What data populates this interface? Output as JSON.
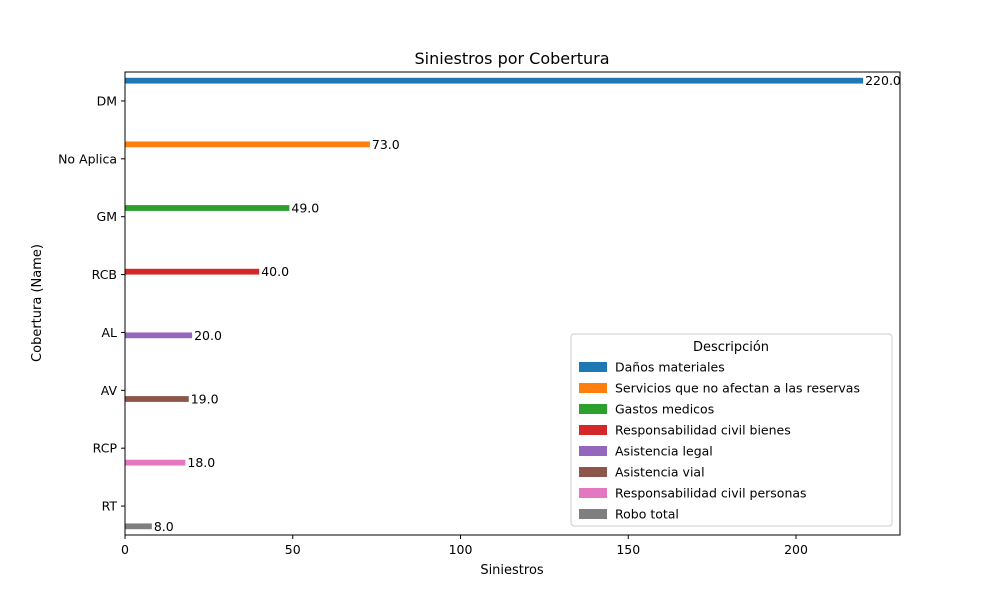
{
  "chart_data": {
    "type": "bar",
    "orientation": "horizontal",
    "title": "Siniestros por Cobertura",
    "xlabel": "Siniestros",
    "ylabel": "Cobertura (Name)",
    "xlim": [
      0,
      231
    ],
    "xticks": [
      0,
      50,
      100,
      150,
      200
    ],
    "grid": false,
    "categories": [
      "DM",
      "No Aplica",
      "GM",
      "RCB",
      "AL",
      "AV",
      "RCP",
      "RT"
    ],
    "legend": {
      "title": "Descripción",
      "placement": "lower-right"
    },
    "series": [
      {
        "name": "Daños materiales",
        "color": "#1f77b4",
        "category": "DM",
        "value": 220,
        "label": "220.0"
      },
      {
        "name": "Servicios que no afectan a las reservas",
        "color": "#ff7f0e",
        "category": "No Aplica",
        "value": 73,
        "label": "73.0"
      },
      {
        "name": "Gastos medicos",
        "color": "#2ca02c",
        "category": "GM",
        "value": 49,
        "label": "49.0"
      },
      {
        "name": "Responsabilidad civil bienes",
        "color": "#d62728",
        "category": "RCB",
        "value": 40,
        "label": "40.0"
      },
      {
        "name": "Asistencia legal",
        "color": "#9467bd",
        "category": "AL",
        "value": 20,
        "label": "20.0"
      },
      {
        "name": "Asistencia vial",
        "color": "#8c564b",
        "category": "AV",
        "value": 19,
        "label": "19.0"
      },
      {
        "name": "Responsabilidad civil personas",
        "color": "#e377c2",
        "category": "RCP",
        "value": 18,
        "label": "18.0"
      },
      {
        "name": "Robo total",
        "color": "#7f7f7f",
        "category": "RT",
        "value": 8,
        "label": "8.0"
      }
    ]
  }
}
